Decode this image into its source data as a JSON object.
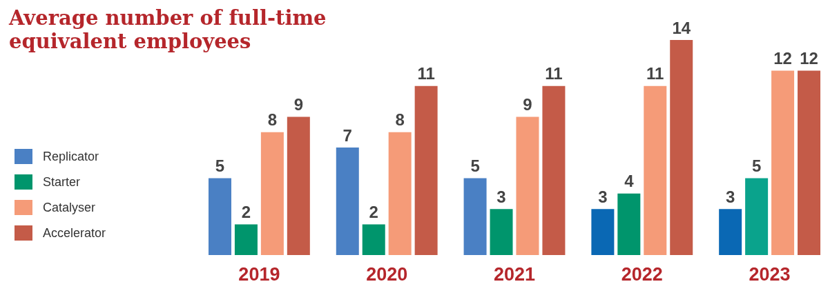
{
  "chart_data": {
    "type": "bar",
    "title": "Average number of full-time\nequivalent employees",
    "categories": [
      "2019",
      "2020",
      "2021",
      "2022",
      "2023"
    ],
    "series": [
      {
        "name": "Replicator",
        "color": "#4a80c4",
        "colors": [
          "#4a80c4",
          "#4a80c4",
          "#4a80c4",
          "#0a68b4",
          "#0a68b4"
        ],
        "values": [
          5,
          7,
          5,
          3,
          3
        ]
      },
      {
        "name": "Starter",
        "color": "#00956c",
        "colors": [
          "#00956c",
          "#00956c",
          "#00956c",
          "#00956c",
          "#0aa38c"
        ],
        "values": [
          2,
          2,
          3,
          4,
          5
        ]
      },
      {
        "name": "Catalyser",
        "color": "#f59b78",
        "values": [
          8,
          8,
          9,
          11,
          12
        ]
      },
      {
        "name": "Accelerator",
        "color": "#c45b48",
        "values": [
          9,
          11,
          11,
          14,
          12
        ]
      }
    ],
    "data_labels": true,
    "legend": "left"
  }
}
